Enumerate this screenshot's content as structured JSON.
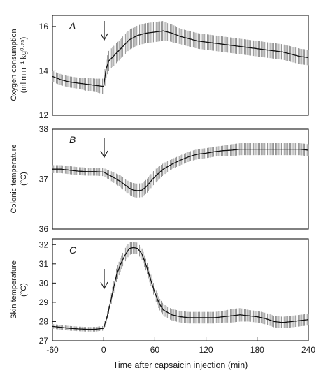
{
  "chart_data": [
    {
      "type": "line",
      "panel_label": "A",
      "ylabel_line1": "Oxygen consumption",
      "ylabel_line2": "(ml min⁻¹ kg⁰·⁷⁵)",
      "ylim": [
        12,
        16.5
      ],
      "yticks": [
        "12",
        "14",
        "16"
      ],
      "ytick_values": [
        12,
        14,
        16
      ],
      "xlim": [
        -60,
        240
      ],
      "annotation": "capsaicin injection arrow at 0 min",
      "x": [
        -60,
        -50,
        -40,
        -30,
        -20,
        -10,
        0,
        3,
        6,
        10,
        15,
        20,
        25,
        30,
        40,
        50,
        60,
        70,
        75,
        80,
        90,
        100,
        110,
        120,
        130,
        140,
        150,
        160,
        170,
        180,
        190,
        200,
        210,
        220,
        230,
        240
      ],
      "y": [
        13.75,
        13.6,
        13.5,
        13.45,
        13.4,
        13.35,
        13.3,
        14.1,
        14.45,
        14.6,
        14.8,
        15.0,
        15.2,
        15.4,
        15.6,
        15.7,
        15.75,
        15.8,
        15.75,
        15.7,
        15.55,
        15.45,
        15.35,
        15.3,
        15.25,
        15.2,
        15.15,
        15.1,
        15.05,
        15.0,
        14.95,
        14.9,
        14.85,
        14.75,
        14.65,
        14.6
      ],
      "err": [
        0.25,
        0.25,
        0.25,
        0.25,
        0.3,
        0.3,
        0.35,
        0.4,
        0.45,
        0.45,
        0.45,
        0.45,
        0.45,
        0.45,
        0.45,
        0.45,
        0.45,
        0.45,
        0.4,
        0.4,
        0.35,
        0.35,
        0.35,
        0.35,
        0.35,
        0.35,
        0.35,
        0.35,
        0.35,
        0.35,
        0.35,
        0.35,
        0.35,
        0.35,
        0.35,
        0.35
      ]
    },
    {
      "type": "line",
      "panel_label": "B",
      "ylabel_line1": "Colonic temperature",
      "ylabel_line2": "(°C)",
      "ylim": [
        36,
        38
      ],
      "yticks": [
        "36",
        "37",
        "38"
      ],
      "ytick_values": [
        36,
        37,
        38
      ],
      "xlim": [
        -60,
        240
      ],
      "annotation": "capsaicin injection arrow at 0 min",
      "x": [
        -60,
        -50,
        -40,
        -30,
        -20,
        -10,
        0,
        10,
        20,
        30,
        35,
        40,
        45,
        50,
        60,
        70,
        80,
        90,
        100,
        110,
        120,
        130,
        140,
        150,
        160,
        170,
        180,
        190,
        200,
        210,
        220,
        230,
        240
      ],
      "y": [
        37.2,
        37.2,
        37.18,
        37.16,
        37.15,
        37.15,
        37.14,
        37.05,
        36.95,
        36.82,
        36.78,
        36.77,
        36.78,
        36.85,
        37.05,
        37.2,
        37.3,
        37.38,
        37.45,
        37.5,
        37.52,
        37.55,
        37.57,
        37.58,
        37.6,
        37.6,
        37.6,
        37.6,
        37.6,
        37.6,
        37.6,
        37.6,
        37.58
      ],
      "err": [
        0.08,
        0.08,
        0.08,
        0.08,
        0.08,
        0.08,
        0.08,
        0.1,
        0.12,
        0.13,
        0.14,
        0.14,
        0.14,
        0.14,
        0.14,
        0.12,
        0.1,
        0.1,
        0.1,
        0.1,
        0.1,
        0.1,
        0.1,
        0.12,
        0.12,
        0.12,
        0.12,
        0.12,
        0.12,
        0.12,
        0.12,
        0.12,
        0.12
      ]
    },
    {
      "type": "line",
      "panel_label": "C",
      "ylabel_line1": "Skin temperature",
      "ylabel_line2": "(°C)",
      "ylim": [
        27,
        32.3
      ],
      "yticks": [
        "27",
        "28",
        "29",
        "30",
        "31",
        "32"
      ],
      "ytick_values": [
        27,
        28,
        29,
        30,
        31,
        32
      ],
      "xlim": [
        -60,
        240
      ],
      "annotation": "capsaicin injection arrow at 0 min",
      "xlabel": "Time after capsaicin injection (min)",
      "xticks": [
        "-60",
        "0",
        "60",
        "120",
        "180",
        "240"
      ],
      "xtick_values": [
        -60,
        0,
        60,
        120,
        180,
        240
      ],
      "x": [
        -60,
        -50,
        -40,
        -30,
        -20,
        -10,
        0,
        5,
        10,
        15,
        20,
        25,
        30,
        35,
        40,
        45,
        50,
        55,
        60,
        65,
        70,
        80,
        90,
        100,
        110,
        120,
        130,
        140,
        150,
        160,
        170,
        180,
        190,
        200,
        210,
        220,
        230,
        240
      ],
      "y": [
        27.75,
        27.7,
        27.65,
        27.62,
        27.6,
        27.6,
        27.65,
        28.4,
        29.4,
        30.4,
        31.0,
        31.45,
        31.8,
        31.85,
        31.8,
        31.5,
        30.9,
        30.2,
        29.5,
        28.95,
        28.6,
        28.35,
        28.25,
        28.2,
        28.2,
        28.2,
        28.2,
        28.25,
        28.3,
        28.35,
        28.3,
        28.25,
        28.15,
        28.0,
        27.95,
        28.0,
        28.05,
        28.1
      ],
      "err": [
        0.12,
        0.12,
        0.12,
        0.12,
        0.12,
        0.12,
        0.12,
        0.2,
        0.3,
        0.35,
        0.35,
        0.35,
        0.35,
        0.3,
        0.3,
        0.3,
        0.3,
        0.3,
        0.3,
        0.3,
        0.3,
        0.3,
        0.3,
        0.3,
        0.3,
        0.3,
        0.3,
        0.3,
        0.35,
        0.35,
        0.3,
        0.3,
        0.3,
        0.3,
        0.3,
        0.3,
        0.3,
        0.3
      ]
    }
  ]
}
